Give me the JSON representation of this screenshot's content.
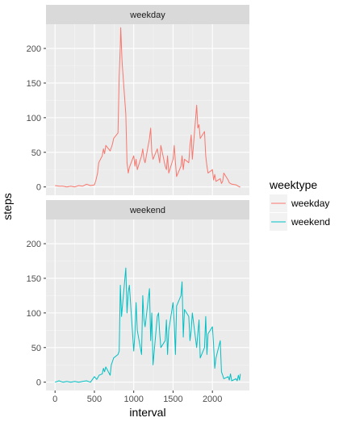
{
  "chart_data": {
    "type": "line",
    "xlabel": "interval",
    "ylabel": "steps",
    "xlim": [
      -115,
      2470
    ],
    "ylim": [
      -12,
      235
    ],
    "x_ticks": [
      0,
      500,
      1000,
      1500,
      2000
    ],
    "y_ticks": [
      0,
      50,
      100,
      150,
      200
    ],
    "grid": true,
    "facets": [
      "weekday",
      "weekend"
    ],
    "legend": {
      "title": "weektype",
      "position": "right",
      "entries": [
        "weekday",
        "weekend"
      ]
    },
    "series": [
      {
        "name": "weekday",
        "facet": "weekday",
        "color": "#F8766D",
        "x": [
          0,
          50,
          100,
          150,
          200,
          250,
          300,
          350,
          400,
          450,
          500,
          520,
          540,
          555,
          600,
          615,
          630,
          645,
          700,
          730,
          745,
          800,
          815,
          830,
          835,
          840,
          850,
          855,
          900,
          915,
          930,
          945,
          1000,
          1015,
          1030,
          1045,
          1100,
          1115,
          1130,
          1145,
          1200,
          1215,
          1230,
          1245,
          1300,
          1315,
          1330,
          1345,
          1400,
          1415,
          1430,
          1445,
          1500,
          1515,
          1530,
          1545,
          1600,
          1615,
          1630,
          1645,
          1700,
          1715,
          1730,
          1745,
          1800,
          1815,
          1830,
          1845,
          1900,
          1915,
          1930,
          1945,
          2000,
          2015,
          2030,
          2045,
          2100,
          2115,
          2130,
          2145,
          2200,
          2215,
          2230,
          2245,
          2300,
          2315,
          2330,
          2345,
          2355
        ],
        "y": [
          2,
          1,
          1,
          0,
          1,
          0,
          2,
          1,
          4,
          2,
          3,
          10,
          20,
          35,
          45,
          55,
          48,
          60,
          52,
          62,
          70,
          78,
          160,
          205,
          230,
          215,
          185,
          175,
          105,
          35,
          20,
          28,
          45,
          30,
          40,
          25,
          45,
          55,
          40,
          35,
          70,
          85,
          50,
          40,
          55,
          45,
          35,
          60,
          30,
          25,
          45,
          20,
          40,
          60,
          35,
          15,
          30,
          45,
          25,
          40,
          35,
          60,
          75,
          40,
          118,
          85,
          90,
          70,
          80,
          45,
          30,
          20,
          25,
          10,
          18,
          8,
          12,
          5,
          8,
          20,
          10,
          6,
          5,
          4,
          3,
          2,
          1,
          0,
          0
        ]
      },
      {
        "name": "weekend",
        "facet": "weekend",
        "color": "#00BFC4",
        "x": [
          0,
          50,
          100,
          150,
          200,
          250,
          300,
          350,
          400,
          450,
          500,
          530,
          560,
          600,
          615,
          630,
          645,
          700,
          715,
          730,
          745,
          800,
          815,
          830,
          845,
          900,
          915,
          930,
          945,
          1000,
          1015,
          1030,
          1045,
          1100,
          1115,
          1130,
          1145,
          1200,
          1215,
          1230,
          1245,
          1300,
          1315,
          1330,
          1345,
          1400,
          1415,
          1430,
          1445,
          1500,
          1515,
          1530,
          1545,
          1600,
          1615,
          1630,
          1645,
          1700,
          1715,
          1730,
          1745,
          1800,
          1815,
          1830,
          1845,
          1900,
          1915,
          1930,
          1945,
          2000,
          2015,
          2030,
          2045,
          2100,
          2115,
          2130,
          2145,
          2200,
          2215,
          2230,
          2245,
          2300,
          2315,
          2330,
          2345,
          2355
        ],
        "y": [
          0,
          2,
          0,
          1,
          0,
          1,
          0,
          1,
          2,
          0,
          8,
          4,
          10,
          12,
          20,
          15,
          22,
          10,
          25,
          30,
          35,
          40,
          45,
          140,
          95,
          165,
          100,
          130,
          140,
          45,
          70,
          115,
          75,
          40,
          125,
          90,
          80,
          135,
          60,
          100,
          25,
          95,
          100,
          70,
          50,
          60,
          90,
          40,
          75,
          115,
          85,
          40,
          110,
          125,
          145,
          65,
          105,
          95,
          60,
          75,
          100,
          50,
          70,
          90,
          35,
          50,
          95,
          40,
          70,
          80,
          55,
          20,
          35,
          60,
          15,
          10,
          5,
          8,
          3,
          12,
          2,
          5,
          2,
          10,
          3,
          12
        ]
      }
    ]
  }
}
